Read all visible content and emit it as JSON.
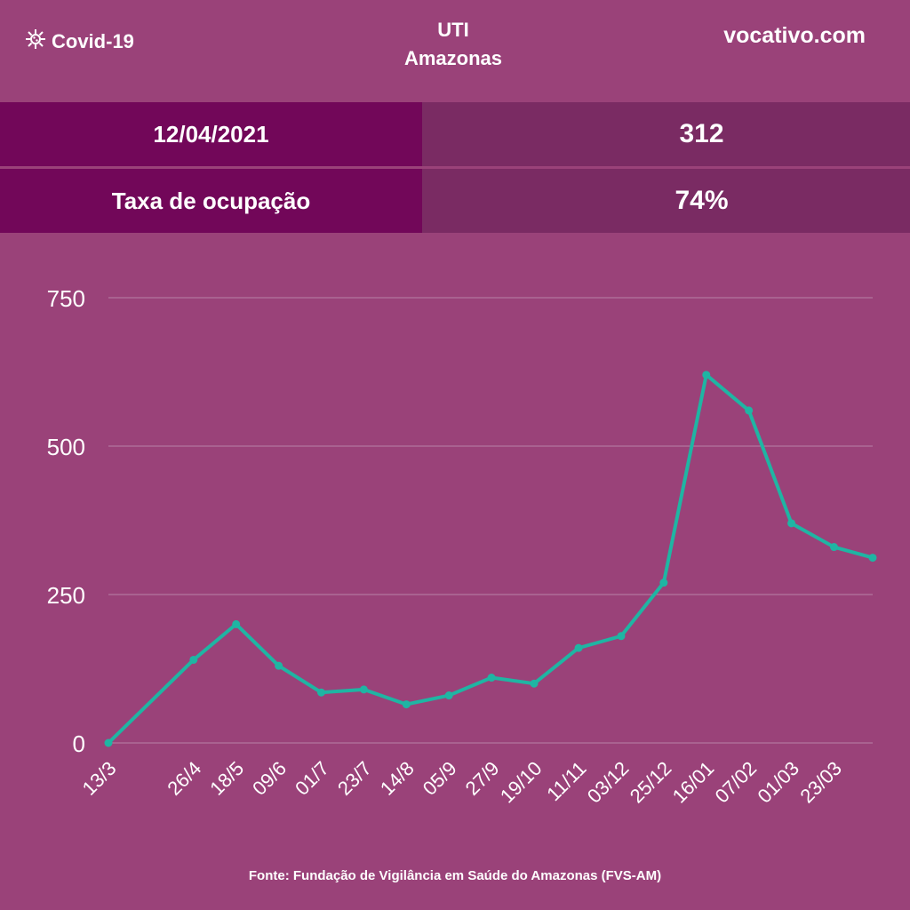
{
  "header": {
    "brand_label": "Covid-19",
    "brand_icon": "virus-icon",
    "title_line1": "UTI",
    "title_line2": "Amazonas",
    "site": "vocativo.com"
  },
  "stats": [
    {
      "label": "12/04/2021",
      "value": "312"
    },
    {
      "label": "Taxa de ocupação",
      "value": "74%"
    }
  ],
  "source": "Fonte: Fundação de Vigilância em Saúde do Amazonas (FVS-AM)",
  "colors": {
    "background": "#9a4279",
    "header_band": "#720759",
    "value_band": "#7a2b63",
    "line": "#1fb5a3",
    "grid": "#b883a6"
  },
  "chart_data": {
    "type": "line",
    "title": "",
    "xlabel": "",
    "ylabel": "",
    "ylim": [
      0,
      750
    ],
    "yticks": [
      0,
      250,
      500,
      750
    ],
    "xtick_labels": [
      "13/3",
      "26/4",
      "18/5",
      "09/6",
      "01/7",
      "23/7",
      "14/8",
      "05/9",
      "27/9",
      "19/10",
      "11/11",
      "03/12",
      "25/12",
      "16/01",
      "07/02",
      "01/03",
      "23/03"
    ],
    "grid": true,
    "legend": "none",
    "x": [
      "13/03/2020",
      "26/04/2020",
      "18/05/2020",
      "09/06/2020",
      "01/07/2020",
      "23/07/2020",
      "14/08/2020",
      "05/09/2020",
      "27/09/2020",
      "19/10/2020",
      "11/11/2020",
      "03/12/2020",
      "25/12/2020",
      "16/01/2021",
      "07/02/2021",
      "01/03/2021",
      "23/03/2021",
      "12/04/2021"
    ],
    "series": [
      {
        "values": [
          0,
          140,
          200,
          130,
          85,
          90,
          65,
          80,
          110,
          100,
          160,
          180,
          270,
          620,
          560,
          370,
          330,
          312
        ]
      }
    ]
  }
}
